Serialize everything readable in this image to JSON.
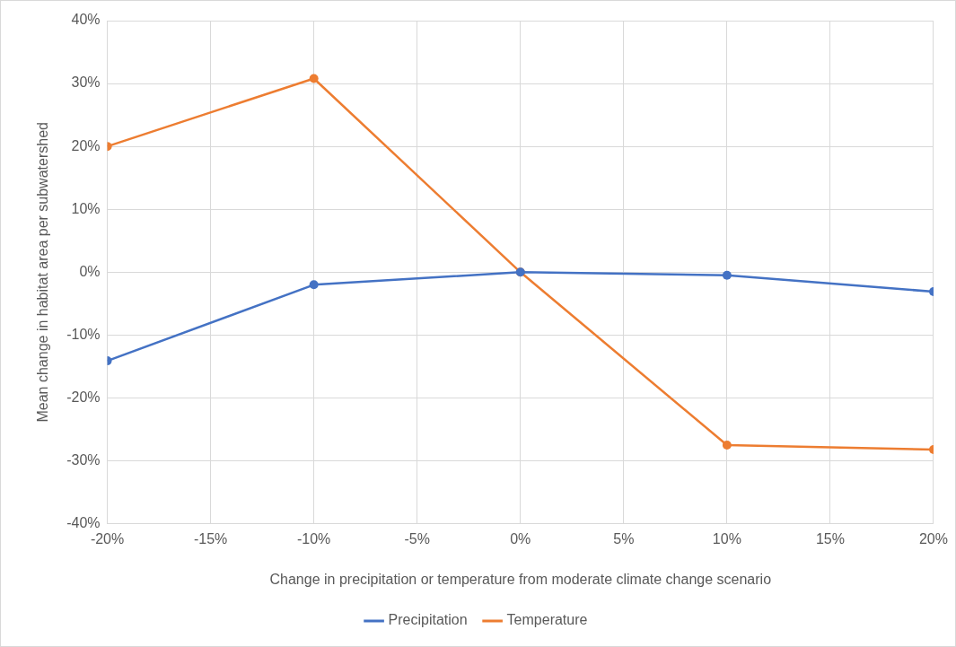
{
  "chart_data": {
    "type": "line",
    "xlabel": "Change in precipitation or temperature from moderate climate change scenario",
    "ylabel": "Mean change in habitat area per subwatershed",
    "x": [
      -20,
      -10,
      0,
      10,
      20
    ],
    "series": [
      {
        "name": "Precipitation",
        "color": "#4472c4",
        "values": [
          -14.1,
          -2.0,
          0,
          -0.5,
          -3.1
        ]
      },
      {
        "name": "Temperature",
        "color": "#ed7d31",
        "values": [
          20.0,
          30.8,
          0,
          -27.5,
          -28.2
        ]
      }
    ],
    "xlim": [
      -20,
      20
    ],
    "xticks": [
      {
        "value": -20,
        "label": "-20%"
      },
      {
        "value": -15,
        "label": "-15%"
      },
      {
        "value": -10,
        "label": "-10%"
      },
      {
        "value": -5,
        "label": "-5%"
      },
      {
        "value": 0,
        "label": "0%"
      },
      {
        "value": 5,
        "label": "5%"
      },
      {
        "value": 10,
        "label": "10%"
      },
      {
        "value": 15,
        "label": "15%"
      },
      {
        "value": 20,
        "label": "20%"
      }
    ],
    "ylim": [
      -40,
      40
    ],
    "yticks": [
      {
        "value": -40,
        "label": "-40%"
      },
      {
        "value": -30,
        "label": "-30%"
      },
      {
        "value": -20,
        "label": "-20%"
      },
      {
        "value": -10,
        "label": "-10%"
      },
      {
        "value": 0,
        "label": "0%"
      },
      {
        "value": 10,
        "label": "10%"
      },
      {
        "value": 20,
        "label": "20%"
      },
      {
        "value": 30,
        "label": "30%"
      },
      {
        "value": 40,
        "label": "40%"
      }
    ],
    "grid": true,
    "legend": "bottom",
    "marker": "circle",
    "line_style": "solid"
  }
}
